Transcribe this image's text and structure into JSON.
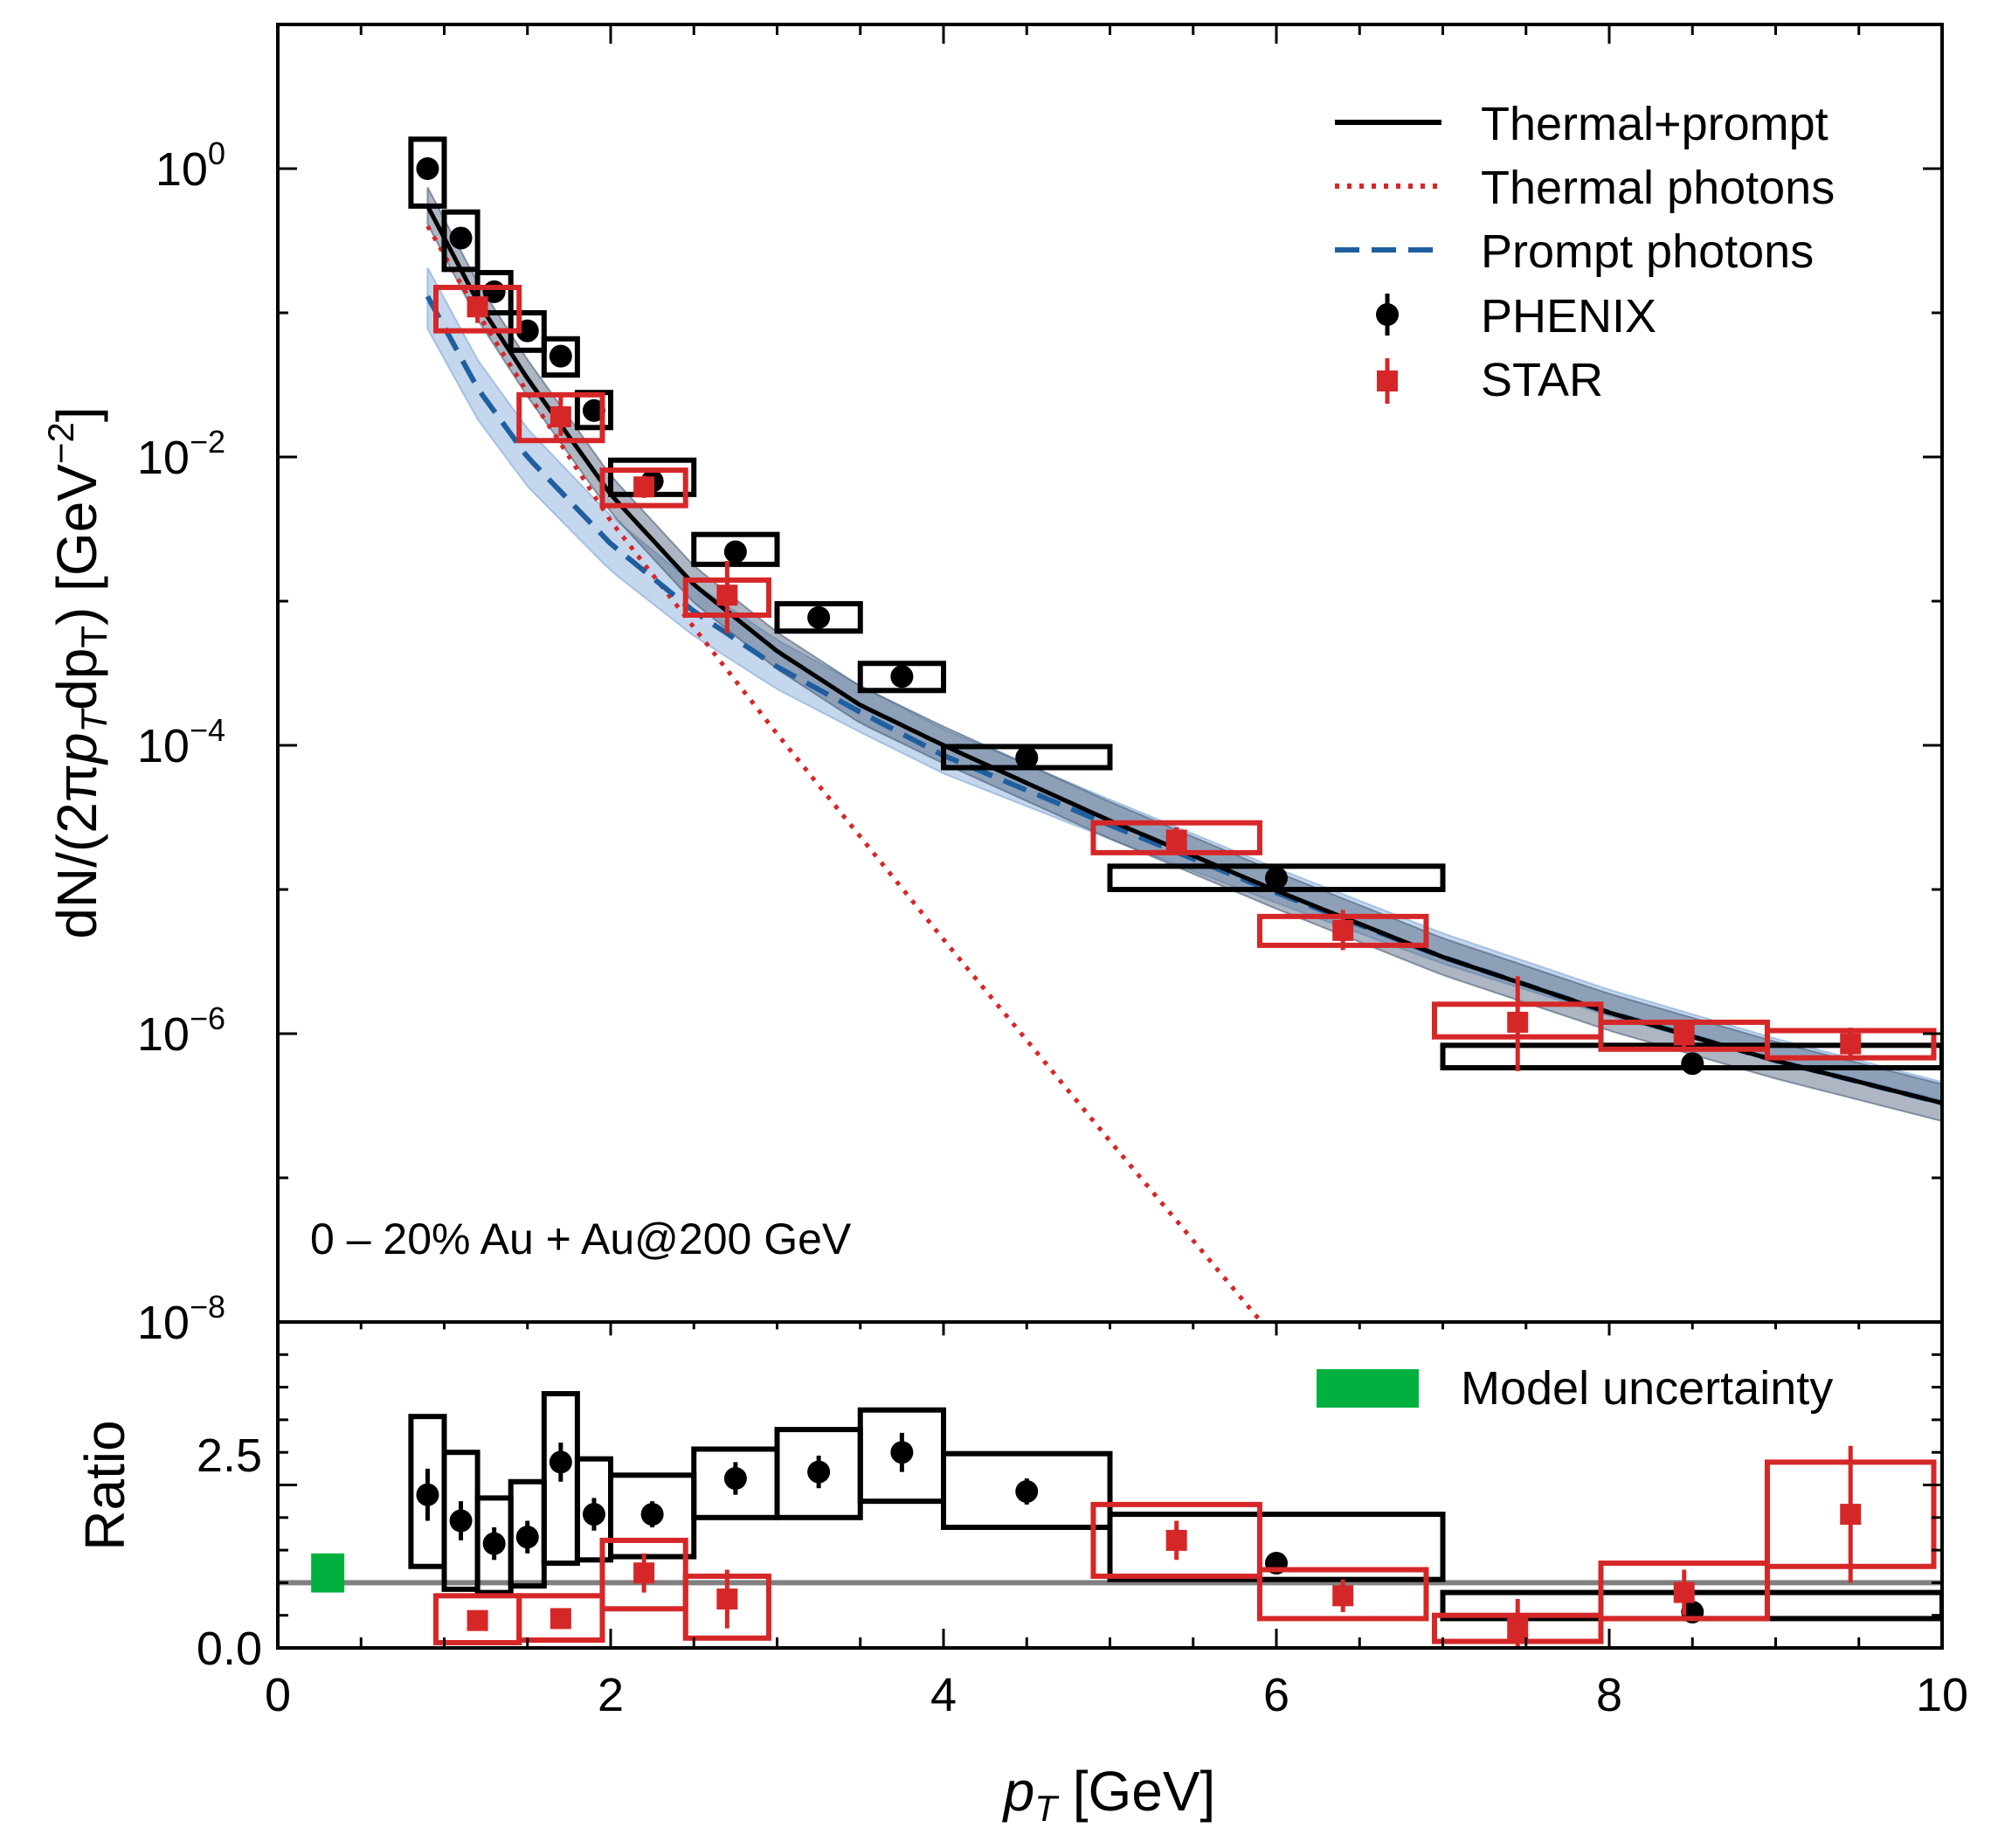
{
  "chart_data": [
    {
      "type": "line",
      "panel": "spectrum",
      "ylabel": "dN/(2πp_T dp_T) [GeV^-2]",
      "xlabel": "p_T [GeV]",
      "xlim": [
        0,
        10
      ],
      "ylim": [
        1e-08,
        10
      ],
      "yscale": "log",
      "y_tick_labels": [
        "10^0",
        "10^-2",
        "10^-4",
        "10^-6",
        "10^-8"
      ],
      "annotation": "0 – 20% Au + Au@200 GeV",
      "legend_position": "top-right",
      "series": [
        {
          "name": "Thermal+prompt",
          "style": "solid",
          "color": "#000000",
          "x": [
            0.9,
            1.2,
            1.5,
            2.0,
            2.5,
            3.0,
            3.5,
            4.0,
            5.0,
            6.0,
            7.0,
            8.0,
            9.0,
            10.0
          ],
          "y": [
            0.55,
            0.12,
            0.035,
            0.0055,
            0.0013,
            0.00045,
            0.00019,
            0.0001,
            3e-05,
            9.8e-06,
            3.4e-06,
            1.4e-06,
            6.5e-07,
            3.3e-07
          ]
        },
        {
          "name": "Thermal photons",
          "style": "dotted",
          "color": "#d62728",
          "x": [
            0.9,
            1.2,
            1.5,
            2.0,
            3.0,
            4.0,
            5.0,
            6.0,
            6.8
          ],
          "y": [
            0.4,
            0.1,
            0.028,
            0.0036,
            0.00012,
            4.5e-06,
            1.8e-07,
            7.5e-09,
            8.2e-10
          ]
        },
        {
          "name": "Prompt photons",
          "style": "dashed",
          "color": "#1f5fa0",
          "x": [
            0.9,
            1.2,
            1.5,
            2.0,
            2.5,
            3.0,
            3.5,
            4.0,
            5.0,
            6.0,
            7.0,
            8.0,
            9.0,
            10.0
          ],
          "y": [
            0.13,
            0.03,
            0.01,
            0.0025,
            0.00085,
            0.00035,
            0.00017,
            8.5e-05,
            2.8e-05,
            9.5e-06,
            3.4e-06,
            1.4e-06,
            6.5e-07,
            3.3e-07
          ]
        },
        {
          "name": "PHENIX",
          "style": "markers-circle",
          "color": "#000000",
          "x": [
            0.9,
            1.1,
            1.3,
            1.5,
            1.7,
            1.9,
            2.25,
            2.75,
            3.25,
            3.75,
            4.5,
            6.0,
            8.5
          ],
          "y": [
            1.0,
            0.33,
            0.14,
            0.075,
            0.05,
            0.021,
            0.0068,
            0.0022,
            0.00077,
            0.0003,
            8.2e-05,
            1.2e-05,
            6.2e-07
          ],
          "x_halfwidth": [
            0.1,
            0.1,
            0.1,
            0.1,
            0.1,
            0.1,
            0.25,
            0.25,
            0.25,
            0.25,
            0.5,
            1.0,
            1.5
          ],
          "y_box_low": [
            0.55,
            0.2,
            0.1,
            0.055,
            0.037,
            0.016,
            0.0055,
            0.0018,
            0.00062,
            0.00024,
            7e-05,
            1e-05,
            5.8e-07
          ],
          "y_box_high": [
            1.6,
            0.5,
            0.19,
            0.1,
            0.066,
            0.028,
            0.0095,
            0.0029,
            0.00096,
            0.00037,
            9.8e-05,
            1.45e-05,
            8.3e-07
          ]
        },
        {
          "name": "STAR",
          "style": "markers-square",
          "color": "#d62728",
          "x": [
            1.2,
            1.7,
            2.2,
            2.7,
            5.4,
            6.4,
            7.45,
            8.45,
            9.45
          ],
          "y": [
            0.11,
            0.019,
            0.0062,
            0.0011,
            2.2e-05,
            5.2e-06,
            1.2e-06,
            9.8e-07,
            8.5e-07
          ],
          "x_halfwidth": [
            0.25,
            0.25,
            0.25,
            0.25,
            0.5,
            0.5,
            0.5,
            0.5,
            0.5
          ],
          "y_box_low": [
            0.075,
            0.013,
            0.0046,
            0.0008,
            1.8e-05,
            4.1e-06,
            9.5e-07,
            7.8e-07,
            6.8e-07
          ],
          "y_box_high": [
            0.15,
            0.027,
            0.0081,
            0.0014,
            2.9e-05,
            6.5e-06,
            1.6e-06,
            1.2e-06,
            1.05e-06
          ],
          "y_err_low": [
            0.085,
            0.014,
            0.0052,
            0.0006,
            1.8e-05,
            3.8e-06,
            5.5e-07,
            8e-07,
            7e-07
          ],
          "y_err_high": [
            0.13,
            0.026,
            0.0074,
            0.0019,
            2.7e-05,
            7.2e-06,
            2.5e-06,
            1.2e-06,
            1.1e-06
          ]
        }
      ]
    },
    {
      "type": "scatter",
      "panel": "ratio",
      "ylabel": "Ratio",
      "xlabel": "p_T [GeV]",
      "xlim": [
        0,
        10
      ],
      "ylim": [
        0,
        5
      ],
      "x_tick_labels": [
        "0",
        "2",
        "4",
        "6",
        "8",
        "10"
      ],
      "y_tick_labels": [
        "0.0",
        "2.5"
      ],
      "legend_position": "top-right",
      "reference_line": 1.0,
      "model_uncertainty": {
        "name": "Model uncertainty",
        "x": 0.3,
        "y_low": 0.85,
        "y_high": 1.45,
        "color": "#00b140"
      },
      "series": [
        {
          "name": "PHENIX",
          "color": "#000000",
          "x": [
            0.9,
            1.1,
            1.3,
            1.5,
            1.7,
            1.9,
            2.25,
            2.75,
            3.25,
            3.75,
            4.5,
            6.0,
            8.5
          ],
          "y": [
            2.35,
            1.95,
            1.6,
            1.7,
            2.85,
            2.05,
            2.05,
            2.6,
            2.7,
            3.0,
            2.4,
            1.3,
            0.55
          ],
          "x_halfwidth": [
            0.1,
            0.1,
            0.1,
            0.1,
            0.1,
            0.1,
            0.25,
            0.25,
            0.25,
            0.25,
            0.5,
            1.0,
            1.5
          ],
          "y_box_low": [
            1.25,
            0.9,
            0.85,
            0.95,
            1.3,
            1.35,
            1.4,
            2.0,
            2.0,
            2.25,
            1.85,
            1.05,
            0.45
          ],
          "y_box_high": [
            3.55,
            3.0,
            2.3,
            2.55,
            3.9,
            2.9,
            2.65,
            3.05,
            3.35,
            3.65,
            2.98,
            2.05,
            0.85
          ],
          "y_err": [
            0.4,
            0.3,
            0.25,
            0.25,
            0.3,
            0.25,
            0.2,
            0.25,
            0.25,
            0.3,
            0.2,
            0.15,
            0.1
          ]
        },
        {
          "name": "STAR",
          "color": "#d62728",
          "x": [
            1.2,
            1.7,
            2.2,
            2.7,
            5.4,
            6.4,
            7.45,
            8.45,
            9.45
          ],
          "y": [
            0.42,
            0.45,
            1.15,
            0.75,
            1.65,
            0.8,
            0.3,
            0.85,
            2.05
          ],
          "x_halfwidth": [
            0.25,
            0.25,
            0.25,
            0.25,
            0.5,
            0.5,
            0.5,
            0.5,
            0.5
          ],
          "y_box_low": [
            0.08,
            0.12,
            0.6,
            0.15,
            1.1,
            0.45,
            0.1,
            0.45,
            1.25
          ],
          "y_box_high": [
            0.8,
            0.8,
            1.65,
            1.1,
            2.2,
            1.2,
            0.5,
            1.3,
            2.85
          ],
          "y_err": [
            0.15,
            0.15,
            0.3,
            0.45,
            0.3,
            0.25,
            0.45,
            0.35,
            1.05
          ]
        }
      ]
    }
  ],
  "labels": {
    "main_ylabel_prefix": "dN/(2π",
    "main_ylabel_pt": "p",
    "main_ylabel_sub1": "T",
    "main_ylabel_mid": "dp",
    "main_ylabel_sub2": "T",
    "main_ylabel_unit": ") [GeV",
    "main_ylabel_exp": "−2",
    "main_ylabel_close": "]",
    "ratio_ylabel": "Ratio",
    "xlabel_p": "p",
    "xlabel_sub": "T",
    "xlabel_unit": " [GeV]",
    "annotation": "0 – 20% Au + Au@200 GeV",
    "legend_thermal_prompt": "Thermal+prompt",
    "legend_thermal": "Thermal photons",
    "legend_prompt": "Prompt photons",
    "legend_phenix": "PHENIX",
    "legend_star": "STAR",
    "legend_model": "Model uncertainty",
    "ytick_main": [
      "10",
      "10",
      "10",
      "10",
      "10"
    ],
    "ytick_main_exp": [
      "0",
      "−2",
      "−4",
      "−6",
      "−8"
    ],
    "ytick_ratio": [
      "0.0",
      "2.5"
    ],
    "xtick": [
      "0",
      "2",
      "4",
      "6",
      "8",
      "10"
    ]
  }
}
